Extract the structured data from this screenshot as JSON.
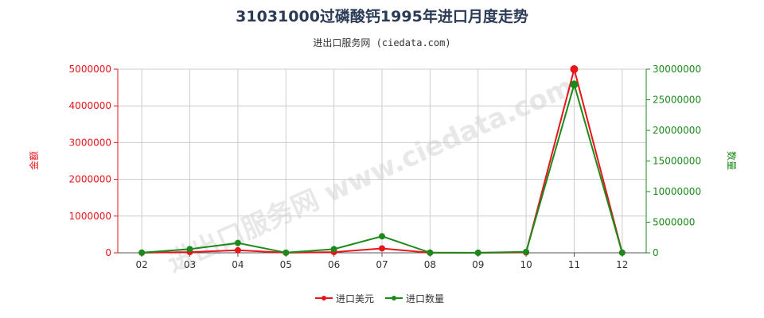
{
  "title": "31031000过磷酸钙1995年进口月度走势",
  "subtitle": "进出口服务网 (ciedata.com)",
  "watermark": "进出口服务网 www.ciedata.com",
  "colors": {
    "left_axis": "#e8141a",
    "right_axis": "#1b8a1b",
    "grid": "#cccccc",
    "axis_line": "#555555"
  },
  "chart_data": {
    "type": "line",
    "categories": [
      "02",
      "03",
      "04",
      "05",
      "06",
      "07",
      "08",
      "09",
      "10",
      "11",
      "12"
    ],
    "y_left": {
      "label": "金额",
      "min": 0,
      "max": 5000000,
      "ticks": [
        "0",
        "1000000",
        "2000000",
        "3000000",
        "4000000",
        "5000000"
      ]
    },
    "y_right": {
      "label": "数量",
      "min": 0,
      "max": 30000000,
      "ticks": [
        "0",
        "5000000",
        "10000000",
        "15000000",
        "20000000",
        "25000000",
        "30000000"
      ]
    },
    "series": [
      {
        "name": "进口美元",
        "axis": "left",
        "color": "#e8141a",
        "values": [
          2000,
          20000,
          70000,
          2000,
          20000,
          120000,
          2000,
          1000,
          10000,
          5000000,
          5000
        ]
      },
      {
        "name": "进口数量",
        "axis": "right",
        "color": "#1b8a1b",
        "values": [
          30000,
          600000,
          1600000,
          20000,
          600000,
          2700000,
          30000,
          10000,
          150000,
          27500000,
          30000
        ]
      }
    ],
    "grid": true,
    "legend_position": "bottom-center"
  }
}
